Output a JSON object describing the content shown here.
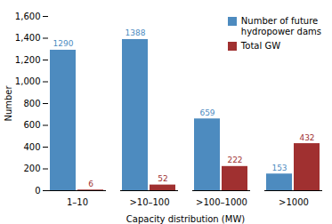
{
  "chart_data": {
    "type": "bar",
    "categories": [
      "1–10",
      ">10–100",
      ">100–1000",
      ">1000"
    ],
    "series": [
      {
        "name": "Number of future\nhydropower dams",
        "color": "#4d8bbf",
        "values": [
          1290,
          1388,
          659,
          153
        ]
      },
      {
        "name": "Total GW",
        "color": "#a03030",
        "values": [
          6,
          52,
          222,
          432
        ]
      }
    ],
    "xlabel": "Capacity distribution (MW)",
    "ylabel": "Number",
    "ylim": [
      0,
      1600
    ],
    "yticks": [
      0,
      200,
      400,
      600,
      800,
      1000,
      1200,
      1400,
      1600
    ],
    "data_labels": true,
    "legend": "upper right",
    "grid": false
  }
}
